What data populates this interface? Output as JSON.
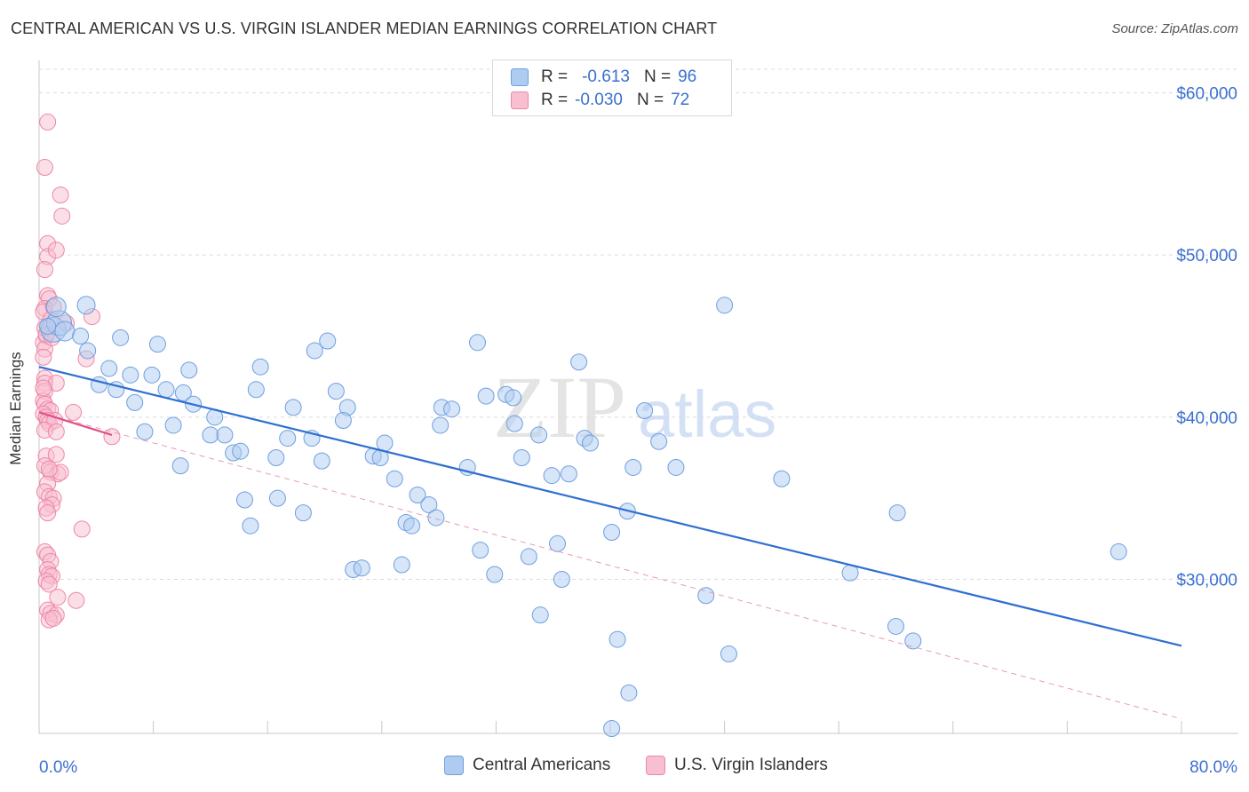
{
  "title": "CENTRAL AMERICAN VS U.S. VIRGIN ISLANDER MEDIAN EARNINGS CORRELATION CHART",
  "source": "Source: ZipAtlas.com",
  "watermark": {
    "zip": "ZIP",
    "atlas": "atlas"
  },
  "legend": {
    "rows": [
      {
        "r_label": "R =",
        "r_value": "-0.613",
        "n_label": "N =",
        "n_value": "96",
        "color": "#aecbf0",
        "border": "#6f9fe0"
      },
      {
        "r_label": "R =",
        "r_value": "-0.030",
        "n_label": "N =",
        "n_value": "72",
        "color": "#f7bfd0",
        "border": "#ee86a8"
      }
    ]
  },
  "chart_data": {
    "type": "scatter",
    "xlabel": "",
    "ylabel": "Median Earnings",
    "xlim": [
      0,
      80
    ],
    "ylim": [
      20500,
      62000
    ],
    "x_tick_labels": [
      "0.0%",
      "80.0%"
    ],
    "y_ticks": [
      {
        "value": 30000,
        "label": "$30,000"
      },
      {
        "value": 40000,
        "label": "$40,000"
      },
      {
        "value": 50000,
        "label": "$50,000"
      },
      {
        "value": 60000,
        "label": "$60,000"
      }
    ],
    "series": [
      {
        "name": "Central Americans",
        "color": "#aecbf0",
        "stroke": "#6f9fe0",
        "trend": {
          "x1": 0,
          "y1": 43100,
          "x2": 80,
          "y2": 25900,
          "color": "#2f6fd0",
          "style": "solid"
        },
        "points": [
          [
            1.0,
            45400,
            14
          ],
          [
            1.4,
            45800,
            14
          ],
          [
            1.2,
            46800,
            11
          ],
          [
            1.8,
            45300,
            11
          ],
          [
            3.3,
            46900,
            10
          ],
          [
            2.9,
            45000,
            9
          ],
          [
            3.4,
            44100,
            9
          ],
          [
            5.7,
            44900,
            9
          ],
          [
            8.3,
            44500,
            9
          ],
          [
            6.4,
            42600,
            9
          ],
          [
            4.9,
            43000,
            9
          ],
          [
            4.2,
            42000,
            9
          ],
          [
            5.4,
            41700,
            9
          ],
          [
            7.9,
            42600,
            9
          ],
          [
            6.7,
            40900,
            9
          ],
          [
            8.9,
            41700,
            9
          ],
          [
            10.5,
            42900,
            9
          ],
          [
            10.1,
            41500,
            9
          ],
          [
            9.4,
            39500,
            9
          ],
          [
            10.8,
            40800,
            9
          ],
          [
            12.3,
            40000,
            9
          ],
          [
            7.4,
            39100,
            9
          ],
          [
            12.0,
            38900,
            9
          ],
          [
            13.0,
            38900,
            9
          ],
          [
            13.6,
            37800,
            9
          ],
          [
            14.1,
            37900,
            9
          ],
          [
            9.9,
            37000,
            9
          ],
          [
            15.5,
            43100,
            9
          ],
          [
            15.2,
            41700,
            9
          ],
          [
            17.8,
            40600,
            9
          ],
          [
            16.6,
            37500,
            9
          ],
          [
            17.4,
            38700,
            9
          ],
          [
            19.3,
            44100,
            9
          ],
          [
            20.2,
            44700,
            9
          ],
          [
            20.8,
            41600,
            9
          ],
          [
            21.6,
            40600,
            9
          ],
          [
            21.3,
            39800,
            9
          ],
          [
            19.1,
            38700,
            9
          ],
          [
            19.8,
            37300,
            9
          ],
          [
            24.2,
            38400,
            9
          ],
          [
            23.4,
            37600,
            9
          ],
          [
            23.9,
            37500,
            9
          ],
          [
            24.9,
            36200,
            9
          ],
          [
            28.2,
            40600,
            9
          ],
          [
            28.9,
            40500,
            9
          ],
          [
            28.1,
            39500,
            9
          ],
          [
            30.7,
            44600,
            9
          ],
          [
            31.3,
            41300,
            9
          ],
          [
            32.7,
            41400,
            9
          ],
          [
            33.2,
            41200,
            9
          ],
          [
            33.3,
            39600,
            9
          ],
          [
            35.0,
            38900,
            9
          ],
          [
            33.8,
            37500,
            9
          ],
          [
            30.0,
            36900,
            9
          ],
          [
            37.8,
            43400,
            9
          ],
          [
            38.2,
            38700,
            9
          ],
          [
            38.6,
            38400,
            9
          ],
          [
            35.9,
            36400,
            9
          ],
          [
            37.1,
            36500,
            9
          ],
          [
            42.4,
            40400,
            9
          ],
          [
            43.4,
            38500,
            9
          ],
          [
            41.6,
            36900,
            9
          ],
          [
            44.6,
            36900,
            9
          ],
          [
            48.0,
            46900,
            9
          ],
          [
            52.0,
            36200,
            9
          ],
          [
            14.4,
            34900,
            9
          ],
          [
            16.7,
            35000,
            9
          ],
          [
            14.8,
            33300,
            9
          ],
          [
            18.5,
            34100,
            9
          ],
          [
            26.5,
            35200,
            9
          ],
          [
            27.3,
            34600,
            9
          ],
          [
            27.8,
            33800,
            9
          ],
          [
            25.7,
            33500,
            9
          ],
          [
            26.1,
            33300,
            9
          ],
          [
            22.0,
            30600,
            9
          ],
          [
            22.6,
            30700,
            9
          ],
          [
            25.4,
            30900,
            9
          ],
          [
            30.9,
            31800,
            9
          ],
          [
            31.9,
            30300,
            9
          ],
          [
            34.3,
            31400,
            9
          ],
          [
            36.3,
            32200,
            9
          ],
          [
            36.6,
            30000,
            9
          ],
          [
            40.1,
            32900,
            9
          ],
          [
            41.2,
            34200,
            9
          ],
          [
            35.1,
            27800,
            9
          ],
          [
            40.5,
            26300,
            9
          ],
          [
            41.3,
            23000,
            9
          ],
          [
            40.1,
            20800,
            9
          ],
          [
            48.3,
            25400,
            9
          ],
          [
            56.8,
            30400,
            9
          ],
          [
            46.7,
            29000,
            9
          ],
          [
            60.1,
            34100,
            9
          ],
          [
            75.6,
            31700,
            9
          ],
          [
            60.0,
            27100,
            9
          ],
          [
            61.2,
            26200,
            9
          ],
          [
            0.6,
            45600,
            9
          ]
        ]
      },
      {
        "name": "U.S. Virgin Islanders",
        "color": "#f7bfd0",
        "stroke": "#ee86a8",
        "trend": {
          "x1": 0,
          "y1": 40300,
          "x2": 5.1,
          "y2": 38900,
          "color": "#e0508a",
          "style": "solid"
        },
        "trend_extended": {
          "x1": 0,
          "y1": 40300,
          "x2": 80,
          "y2": 21400,
          "color": "#e89ab4",
          "style": "dashed"
        },
        "points": [
          [
            0.6,
            58200,
            9
          ],
          [
            0.4,
            55400,
            9
          ],
          [
            1.5,
            53700,
            9
          ],
          [
            1.6,
            52400,
            9
          ],
          [
            0.6,
            50700,
            9
          ],
          [
            0.6,
            49900,
            9
          ],
          [
            1.2,
            50300,
            9
          ],
          [
            0.4,
            49100,
            9
          ],
          [
            0.6,
            47500,
            9
          ],
          [
            0.7,
            47300,
            9
          ],
          [
            0.4,
            46700,
            9
          ],
          [
            0.3,
            46500,
            9
          ],
          [
            1.0,
            46800,
            9
          ],
          [
            0.8,
            46000,
            9
          ],
          [
            1.9,
            45800,
            9
          ],
          [
            0.4,
            45500,
            9
          ],
          [
            0.5,
            45000,
            9
          ],
          [
            0.3,
            44600,
            9
          ],
          [
            0.4,
            44200,
            9
          ],
          [
            0.3,
            43700,
            9
          ],
          [
            3.3,
            43600,
            9
          ],
          [
            3.7,
            46200,
            9
          ],
          [
            0.4,
            42400,
            9
          ],
          [
            0.4,
            42100,
            9
          ],
          [
            1.2,
            42100,
            9
          ],
          [
            0.4,
            41600,
            9
          ],
          [
            0.3,
            41000,
            9
          ],
          [
            0.4,
            40800,
            9
          ],
          [
            0.6,
            40500,
            9
          ],
          [
            0.8,
            40400,
            9
          ],
          [
            0.3,
            40200,
            9
          ],
          [
            0.5,
            40000,
            9
          ],
          [
            0.6,
            39800,
            9
          ],
          [
            0.7,
            39600,
            9
          ],
          [
            1.1,
            39800,
            9
          ],
          [
            2.4,
            40300,
            9
          ],
          [
            0.4,
            39200,
            9
          ],
          [
            1.2,
            39100,
            9
          ],
          [
            5.1,
            38800,
            9
          ],
          [
            0.5,
            37600,
            9
          ],
          [
            1.2,
            37700,
            9
          ],
          [
            0.4,
            37000,
            9
          ],
          [
            0.8,
            36600,
            9
          ],
          [
            1.3,
            36500,
            9
          ],
          [
            1.5,
            36600,
            9
          ],
          [
            0.6,
            35900,
            9
          ],
          [
            0.4,
            35400,
            9
          ],
          [
            0.7,
            35100,
            9
          ],
          [
            1.0,
            35000,
            9
          ],
          [
            0.9,
            34600,
            9
          ],
          [
            0.5,
            34400,
            9
          ],
          [
            0.6,
            34100,
            9
          ],
          [
            3.0,
            33100,
            9
          ],
          [
            0.4,
            31700,
            9
          ],
          [
            0.6,
            31500,
            9
          ],
          [
            0.8,
            31100,
            9
          ],
          [
            0.6,
            30600,
            9
          ],
          [
            0.7,
            30300,
            9
          ],
          [
            0.9,
            30200,
            9
          ],
          [
            0.5,
            29900,
            9
          ],
          [
            0.7,
            29700,
            9
          ],
          [
            1.3,
            28900,
            9
          ],
          [
            2.6,
            28700,
            9
          ],
          [
            0.6,
            28100,
            9
          ],
          [
            0.8,
            27900,
            9
          ],
          [
            1.2,
            27800,
            9
          ],
          [
            0.7,
            27500,
            9
          ],
          [
            1.0,
            27600,
            9
          ],
          [
            0.5,
            45100,
            9
          ],
          [
            0.9,
            44900,
            9
          ],
          [
            0.3,
            41800,
            9
          ],
          [
            0.7,
            36800,
            9
          ]
        ]
      }
    ]
  }
}
